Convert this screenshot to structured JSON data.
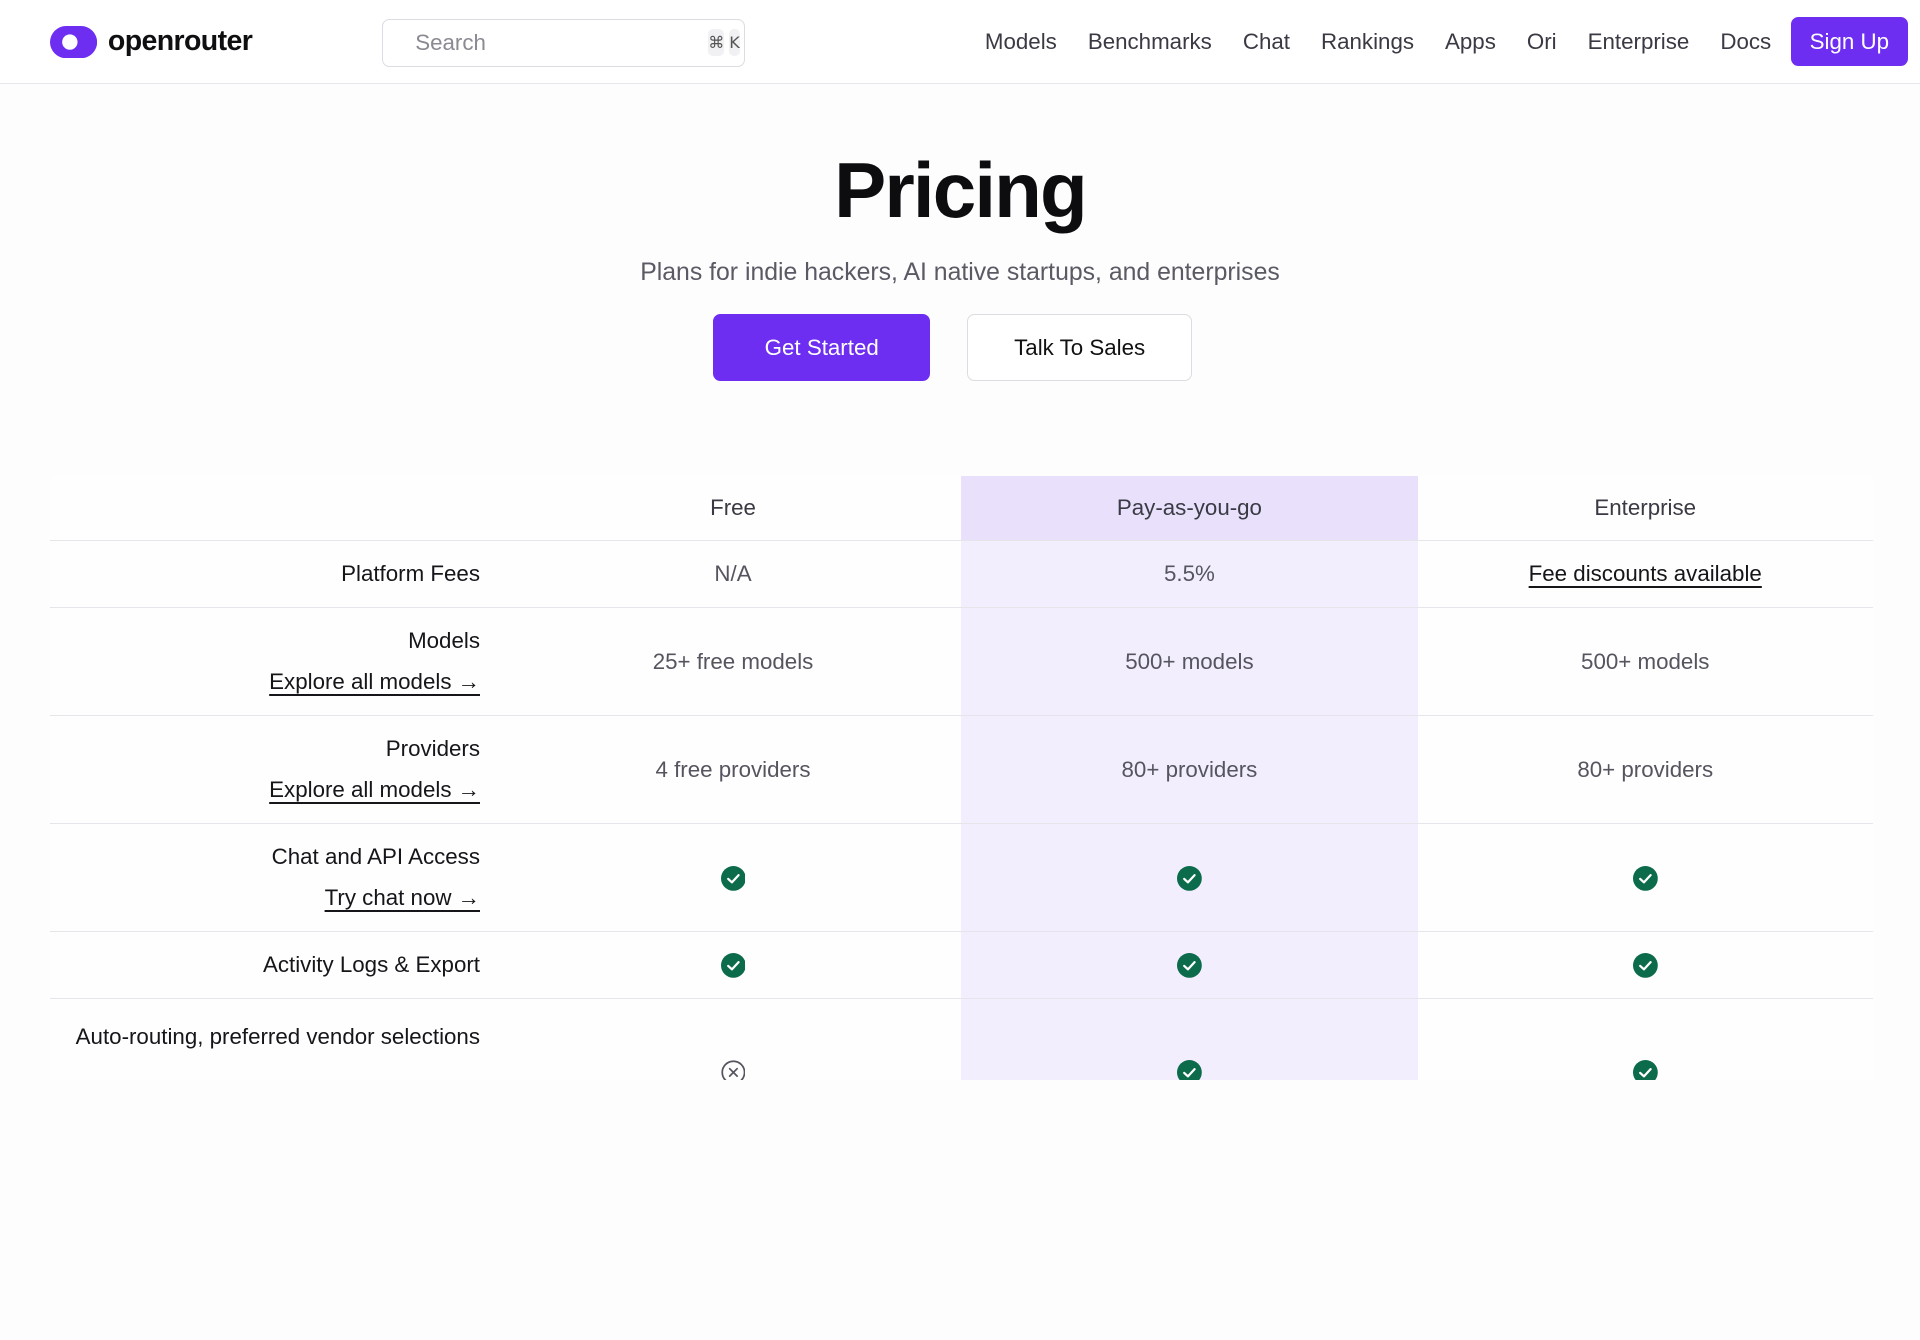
{
  "brand": {
    "name": "openrouter",
    "accent": "#6e2ef2"
  },
  "search": {
    "placeholder": "Search",
    "shortcut_cmd": "⌘",
    "shortcut_key": "K"
  },
  "nav": {
    "links": [
      "Models",
      "Benchmarks",
      "Chat",
      "Rankings",
      "Apps",
      "Ori",
      "Enterprise",
      "Docs"
    ],
    "signup_label": "Sign Up"
  },
  "hero": {
    "title": "Pricing",
    "subtitle": "Plans for indie hackers, AI native startups, and enterprises",
    "primary_cta": "Get Started",
    "secondary_cta": "Talk To Sales"
  },
  "table": {
    "columns": [
      "Free",
      "Pay-as-you-go",
      "Enterprise"
    ],
    "rows": [
      {
        "label": "Platform Fees",
        "link": "",
        "values": [
          "N/A",
          "5.5%",
          "Fee discounts available"
        ]
      },
      {
        "label": "Models",
        "link": "Explore all models →",
        "values": [
          "25+ free models",
          "500+ models",
          "500+ models"
        ]
      },
      {
        "label": "Providers",
        "link": "Explore all models →",
        "values": [
          "4 free providers",
          "80+ providers",
          "80+ providers"
        ]
      },
      {
        "label": "Chat and API Access",
        "link": "Try chat now →",
        "values": [
          "check-icon",
          "check-icon",
          "check-icon"
        ]
      },
      {
        "label": "Activity Logs & Export",
        "link": "",
        "values": [
          "check-icon",
          "check-icon",
          "check-icon"
        ]
      },
      {
        "label": "Auto-routing, preferred vendor selections",
        "link": "",
        "values": [
          "x-circle-icon",
          "check-icon",
          "check-icon"
        ]
      }
    ]
  },
  "colors": {
    "check": "#0b6b4a",
    "highlight": "#f3eefe",
    "highlight_header": "#e9e1fc"
  }
}
